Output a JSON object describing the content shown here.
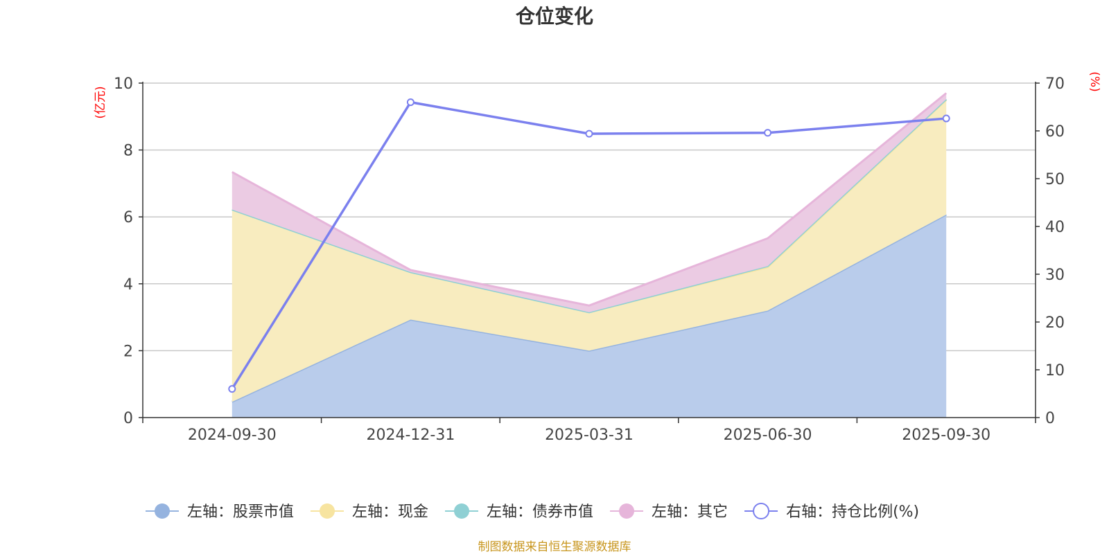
{
  "chart_data": {
    "type": "area",
    "title": "仓位变化",
    "categories": [
      "2024-09-30",
      "2024-12-31",
      "2025-03-31",
      "2025-06-30",
      "2025-09-30"
    ],
    "left_axis": {
      "unit_label": "(亿元)",
      "ylim": [
        0,
        10
      ],
      "ticks": [
        0,
        2,
        4,
        6,
        8,
        10
      ]
    },
    "right_axis": {
      "unit_label": "(%)",
      "ylim": [
        0,
        70
      ],
      "ticks": [
        0,
        10,
        20,
        30,
        40,
        50,
        60,
        70
      ]
    },
    "stacked_series": [
      {
        "name": "左轴：股票市值",
        "color": "#95b3df",
        "fill": "#b9cceb",
        "values": [
          0.47,
          2.93,
          2.0,
          3.2,
          6.07
        ]
      },
      {
        "name": "左轴：现金",
        "color": "#f7e4a0",
        "fill": "#f8ecbf",
        "values": [
          5.75,
          1.42,
          1.15,
          1.3,
          3.43
        ]
      },
      {
        "name": "左轴：债券市值",
        "color": "#8fd0d4",
        "fill": "#b7e2e4",
        "values": [
          0,
          0,
          0,
          0.03,
          0.02
        ]
      },
      {
        "name": "左轴：其它",
        "color": "#e6b5da",
        "fill": "#ebcbe3",
        "values": [
          1.12,
          0.06,
          0.2,
          0.83,
          0.18
        ]
      }
    ],
    "line_series": [
      {
        "name": "右轴：持仓比例(%)",
        "color": "#7b80ee",
        "values": [
          6.0,
          66.0,
          59.4,
          59.6,
          62.6
        ]
      }
    ],
    "source_note": "制图数据来自恒生聚源数据库"
  }
}
